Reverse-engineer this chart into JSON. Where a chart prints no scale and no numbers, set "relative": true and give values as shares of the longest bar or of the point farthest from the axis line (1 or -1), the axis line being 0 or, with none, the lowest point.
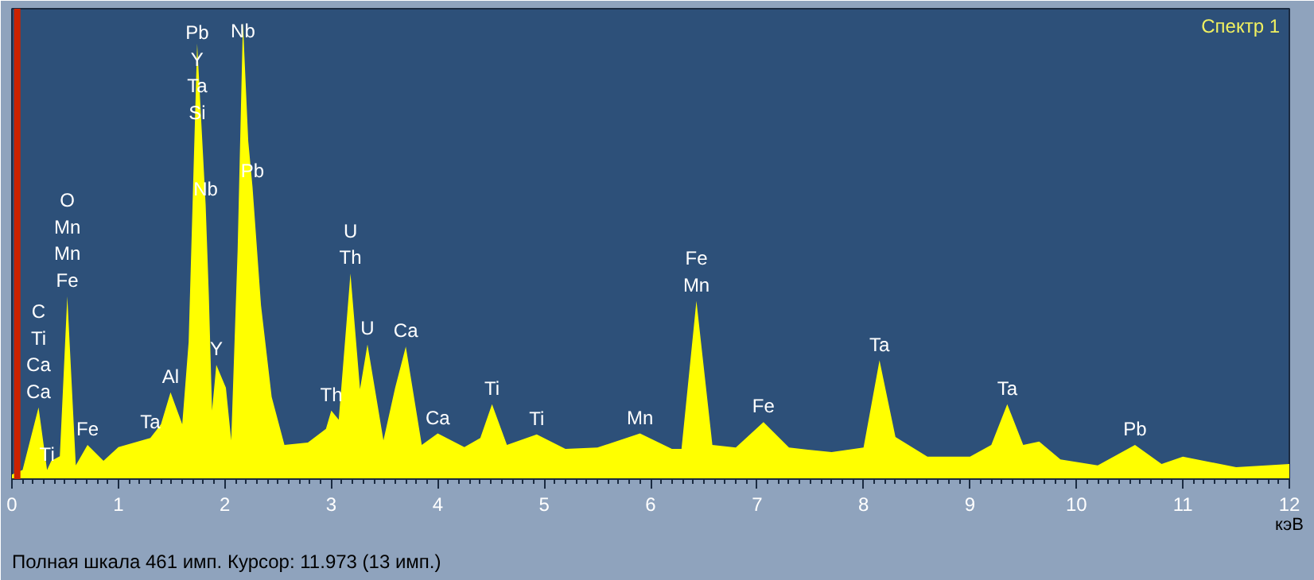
{
  "chart_data": {
    "type": "area",
    "relative": true,
    "title": "Спектр 1",
    "xlabel": "кэВ",
    "xlim": [
      0,
      12
    ],
    "xticks": [
      0,
      1,
      2,
      3,
      4,
      5,
      6,
      7,
      8,
      9,
      10,
      11,
      12
    ],
    "grid": false,
    "x": [
      0.0,
      0.1,
      0.25,
      0.33,
      0.37,
      0.45,
      0.52,
      0.6,
      0.71,
      0.86,
      1.0,
      1.3,
      1.4,
      1.49,
      1.6,
      1.66,
      1.74,
      1.82,
      1.85,
      1.88,
      1.92,
      2.01,
      2.06,
      2.12,
      2.17,
      2.22,
      2.26,
      2.34,
      2.44,
      2.56,
      2.78,
      2.95,
      3.0,
      3.07,
      3.18,
      3.27,
      3.34,
      3.49,
      3.6,
      3.7,
      3.85,
      4.0,
      4.25,
      4.4,
      4.51,
      4.65,
      4.93,
      5.2,
      5.5,
      5.9,
      6.2,
      6.29,
      6.43,
      6.58,
      6.8,
      7.06,
      7.3,
      7.7,
      8.0,
      8.15,
      8.3,
      8.6,
      9.0,
      9.2,
      9.35,
      9.5,
      9.65,
      9.85,
      10.2,
      10.55,
      10.8,
      11.0,
      11.5,
      12.0
    ],
    "series": [
      {
        "color": "#ffff00",
        "values": [
          0.01,
          0.02,
          0.157,
          0.02,
          0.04,
          0.05,
          0.4,
          0.03,
          0.075,
          0.04,
          0.07,
          0.09,
          0.12,
          0.19,
          0.12,
          0.3,
          0.954,
          0.6,
          0.4,
          0.15,
          0.25,
          0.2,
          0.085,
          0.5,
          1.0,
          0.74,
          0.64,
          0.38,
          0.18,
          0.075,
          0.08,
          0.11,
          0.15,
          0.13,
          0.45,
          0.197,
          0.295,
          0.085,
          0.2,
          0.29,
          0.075,
          0.1,
          0.07,
          0.09,
          0.164,
          0.075,
          0.098,
          0.066,
          0.069,
          0.1,
          0.066,
          0.066,
          0.39,
          0.075,
          0.069,
          0.125,
          0.069,
          0.059,
          0.069,
          0.26,
          0.092,
          0.049,
          0.049,
          0.075,
          0.164,
          0.075,
          0.082,
          0.043,
          0.03,
          0.075,
          0.033,
          0.049,
          0.026,
          0.033
        ]
      }
    ],
    "ref_lines": [
      {
        "axis": "x",
        "value": 0.05,
        "color": "#cc2200"
      }
    ],
    "annotations": [
      {
        "text": "C\nTi\nCa\nCa",
        "x": 0.25,
        "y": 0.157
      },
      {
        "text": "Ti",
        "x": 0.33,
        "y": 0.02
      },
      {
        "text": "O\nMn\nMn\nFe",
        "x": 0.52,
        "y": 0.4
      },
      {
        "text": "Fe",
        "x": 0.71,
        "y": 0.075
      },
      {
        "text": "Ta",
        "x": 1.3,
        "y": 0.09
      },
      {
        "text": "Al",
        "x": 1.49,
        "y": 0.19
      },
      {
        "text": "Pb\nY\nTa\nSi",
        "x": 1.74,
        "y": 0.954
      },
      {
        "text": "Nb",
        "x": 2.17,
        "y": 1.0
      },
      {
        "text": "Nb",
        "x": 1.82,
        "y": 0.6
      },
      {
        "text": "Pb",
        "x": 2.26,
        "y": 0.64
      },
      {
        "text": "Y",
        "x": 1.92,
        "y": 0.25
      },
      {
        "text": "Th",
        "x": 3.0,
        "y": 0.15
      },
      {
        "text": "U\nTh",
        "x": 3.18,
        "y": 0.45
      },
      {
        "text": "U",
        "x": 3.34,
        "y": 0.295
      },
      {
        "text": "Ca",
        "x": 3.7,
        "y": 0.29
      },
      {
        "text": "Ca",
        "x": 4.0,
        "y": 0.1
      },
      {
        "text": "Ti",
        "x": 4.51,
        "y": 0.164
      },
      {
        "text": "Ti",
        "x": 4.93,
        "y": 0.098
      },
      {
        "text": "Mn",
        "x": 5.9,
        "y": 0.1
      },
      {
        "text": "Fe\nMn",
        "x": 6.43,
        "y": 0.39
      },
      {
        "text": "Fe",
        "x": 7.06,
        "y": 0.125
      },
      {
        "text": "Ta",
        "x": 8.15,
        "y": 0.26
      },
      {
        "text": "Ta",
        "x": 9.35,
        "y": 0.164
      },
      {
        "text": "Pb",
        "x": 10.55,
        "y": 0.075
      },
      "Полная шкала 461 имп. Курсор: 11.973  (13 имп.)"
    ]
  }
}
